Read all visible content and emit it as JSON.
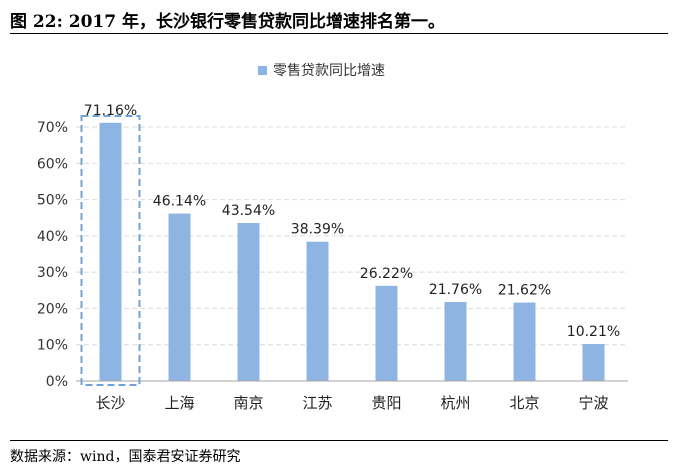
{
  "figure": {
    "title": "图 22:   2017 年，长沙银行零售贷款同比增速排名第一。",
    "source": "数据来源：wind，国泰君安证券研究"
  },
  "chart_data": {
    "type": "bar",
    "categories": [
      "长沙",
      "上海",
      "南京",
      "江苏",
      "贵阳",
      "杭州",
      "北京",
      "宁波"
    ],
    "series": [
      {
        "name": "零售贷款同比增速",
        "values": [
          71.16,
          46.14,
          43.54,
          38.39,
          26.22,
          21.76,
          21.62,
          10.21
        ]
      }
    ],
    "data_labels": [
      "71.16%",
      "46.14%",
      "43.54%",
      "38.39%",
      "26.22%",
      "21.76%",
      "21.62%",
      "10.21%"
    ],
    "y_ticks": [
      0,
      10,
      20,
      30,
      40,
      50,
      60,
      70
    ],
    "y_tick_labels": [
      "0%",
      "10%",
      "20%",
      "30%",
      "40%",
      "50%",
      "60%",
      "70%"
    ],
    "ylim": [
      0,
      70
    ],
    "grid": true,
    "legend_position": "top-center",
    "highlight_category": "长沙",
    "colors": {
      "bar": "#8eb4e3",
      "highlight_box": "#6fa3dc",
      "grid": "#d9d9d9",
      "axis": "#a6a6a6"
    }
  }
}
